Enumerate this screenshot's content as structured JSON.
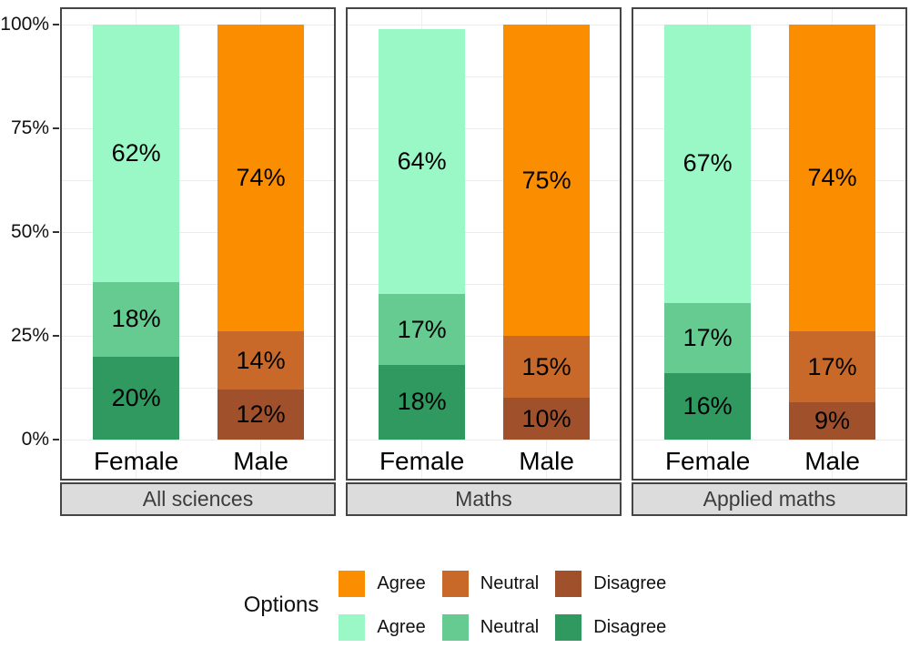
{
  "chart_data": {
    "type": "bar",
    "stacked": true,
    "percent_scale": true,
    "ylim": [
      0,
      100
    ],
    "grid": {
      "major_every": 25,
      "minor_every": 12.5,
      "color": "#ececec"
    },
    "y_ticks": [
      {
        "value": 0,
        "label": "0%"
      },
      {
        "value": 25,
        "label": "25%"
      },
      {
        "value": 50,
        "label": "50%"
      },
      {
        "value": 75,
        "label": "75%"
      },
      {
        "value": 100,
        "label": "100%"
      }
    ],
    "series_colors": {
      "Female": {
        "Agree": "#99F8C5",
        "Neutral": "#66CB90",
        "Disagree": "#2F9960"
      },
      "Male": {
        "Agree": "#FB8E00",
        "Neutral": "#C8692A",
        "Disagree": "#A0512C"
      }
    },
    "facets": [
      {
        "label": "All sciences",
        "groups": [
          {
            "label": "Female",
            "segments": [
              {
                "name": "Disagree",
                "value": 20,
                "label": "20%"
              },
              {
                "name": "Neutral",
                "value": 18,
                "label": "18%"
              },
              {
                "name": "Agree",
                "value": 62,
                "label": "62%"
              }
            ]
          },
          {
            "label": "Male",
            "segments": [
              {
                "name": "Disagree",
                "value": 12,
                "label": "12%"
              },
              {
                "name": "Neutral",
                "value": 14,
                "label": "14%"
              },
              {
                "name": "Agree",
                "value": 74,
                "label": "74%"
              }
            ]
          }
        ]
      },
      {
        "label": "Maths",
        "groups": [
          {
            "label": "Female",
            "segments": [
              {
                "name": "Disagree",
                "value": 18,
                "label": "18%"
              },
              {
                "name": "Neutral",
                "value": 17,
                "label": "17%"
              },
              {
                "name": "Agree",
                "value": 64,
                "label": "64%"
              }
            ]
          },
          {
            "label": "Male",
            "segments": [
              {
                "name": "Disagree",
                "value": 10,
                "label": "10%"
              },
              {
                "name": "Neutral",
                "value": 15,
                "label": "15%"
              },
              {
                "name": "Agree",
                "value": 75,
                "label": "75%"
              }
            ]
          }
        ]
      },
      {
        "label": "Applied maths",
        "groups": [
          {
            "label": "Female",
            "segments": [
              {
                "name": "Disagree",
                "value": 16,
                "label": "16%"
              },
              {
                "name": "Neutral",
                "value": 17,
                "label": "17%"
              },
              {
                "name": "Agree",
                "value": 67,
                "label": "67%"
              }
            ]
          },
          {
            "label": "Male",
            "segments": [
              {
                "name": "Disagree",
                "value": 9,
                "label": "9%"
              },
              {
                "name": "Neutral",
                "value": 17,
                "label": "17%"
              },
              {
                "name": "Agree",
                "value": 74,
                "label": "74%"
              }
            ]
          }
        ]
      }
    ],
    "legend": {
      "title": "Options",
      "rows": [
        [
          {
            "label": "Agree",
            "color": "#FB8E00"
          },
          {
            "label": "Neutral",
            "color": "#C8692A"
          },
          {
            "label": "Disagree",
            "color": "#A0512C"
          }
        ],
        [
          {
            "label": "Agree",
            "color": "#99F8C5"
          },
          {
            "label": "Neutral",
            "color": "#66CB90"
          },
          {
            "label": "Disagree",
            "color": "#2F9960"
          }
        ]
      ]
    },
    "panel": {
      "border_color": "#454545",
      "strip_fill": "#dcdcdc",
      "strip_text_color": "#3c3c3c"
    }
  }
}
